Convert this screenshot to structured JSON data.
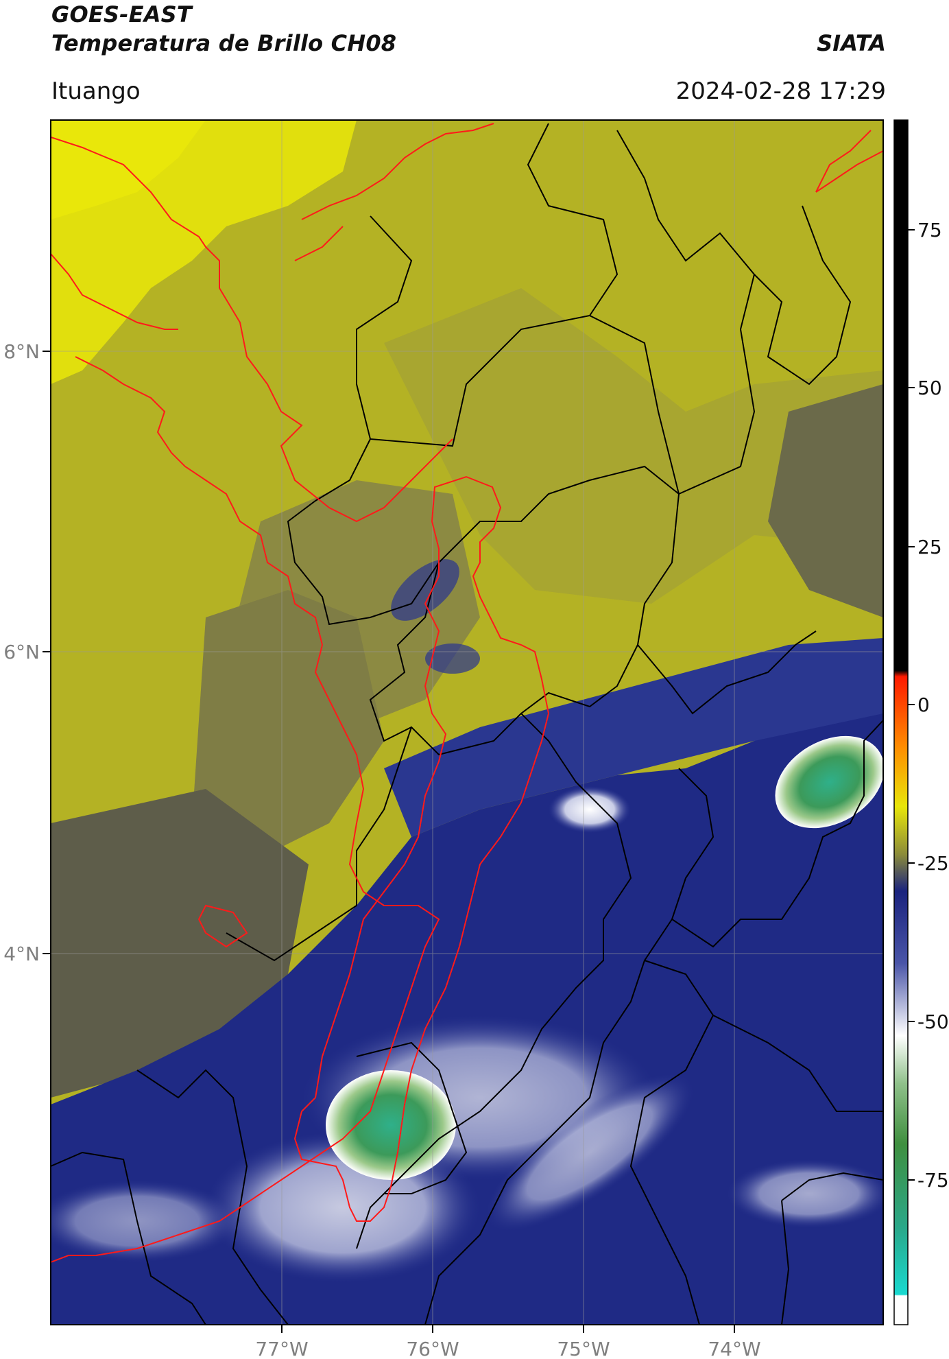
{
  "header": {
    "satellite": "GOES-EAST",
    "product": "Temperatura de Brillo CH08",
    "org": "SIATA",
    "region": "Ituango",
    "datetime": "2024-02-28 17:29"
  },
  "map": {
    "lon_ticks": [
      "77°W",
      "76°W",
      "75°W",
      "74°W"
    ],
    "lat_ticks": [
      "8°N",
      "6°N",
      "4°N"
    ],
    "colorbar": {
      "ticks": [
        "75",
        "50",
        "25",
        "0",
        "-25",
        "-50",
        "-75"
      ],
      "colors": {
        "black": "#000000",
        "red": "#ff1a00",
        "yellow": "#e8e60a",
        "olive": "#8a8a3a",
        "navy": "#1a237e",
        "white": "#ffffff",
        "green": "#3f8f3f",
        "cyan": "#19d9c8"
      }
    }
  }
}
